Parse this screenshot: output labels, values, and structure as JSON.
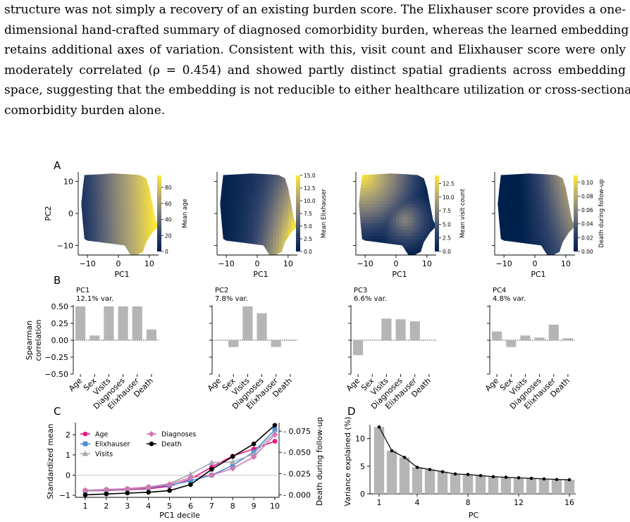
{
  "paragraph": {
    "lines": [
      "structure was not simply a recovery of an existing burden score. The Elixhauser score provides a one-",
      "dimensional hand-crafted summary of diagnosed comorbidity burden, whereas the learned embedding",
      "retains additional axes of variation. Consistent with this, visit count and Elixhauser score were only",
      "moderately correlated (ρ = 0.454) and showed partly distinct spatial gradients across embedding",
      "space, suggesting that the embedding is not reducible to either healthcare utilization or cross-sectional",
      "comorbidity burden alone."
    ]
  },
  "panelA": {
    "label": "A",
    "xlabel": "PC1",
    "ylabel": "PC2",
    "xticks": [
      "−10",
      "0",
      "10"
    ],
    "yticks": [
      "10",
      "0",
      "−10"
    ],
    "maps": [
      {
        "colorbar_label": "Mean age",
        "ticks": [
          "0",
          "20",
          "40",
          "60",
          "80"
        ],
        "max": 95,
        "tickvals": [
          0,
          20,
          40,
          60,
          80
        ],
        "cmap": "cividis"
      },
      {
        "colorbar_label": "Mean Elixhauser",
        "ticks": [
          "0.0",
          "2.5",
          "5.0",
          "7.5",
          "10.0",
          "12.5",
          "15.0"
        ],
        "max": 15,
        "tickvals": [
          0,
          2.5,
          5,
          7.5,
          10,
          12.5,
          15
        ],
        "cmap": "cividis"
      },
      {
        "colorbar_label": "Mean visit count",
        "ticks": [
          "0.0",
          "2.5",
          "5.0",
          "7.5",
          "10.0",
          "12.5"
        ],
        "max": 14,
        "tickvals": [
          0,
          2.5,
          5,
          7.5,
          10,
          12.5
        ],
        "cmap": "cividis"
      },
      {
        "colorbar_label": "Death during follow-up",
        "ticks": [
          "0.00",
          "0.02",
          "0.04",
          "0.06",
          "0.08",
          "0.10"
        ],
        "max": 0.11,
        "tickvals": [
          0,
          0.02,
          0.04,
          0.06,
          0.08,
          0.1
        ],
        "cmap": "cividis"
      }
    ]
  },
  "panelB": {
    "label": "B",
    "ylabel_line1": "Spearman",
    "ylabel_line2": "correlation",
    "yticks": [
      "0.50",
      "0.25",
      "0.00",
      "−0.25",
      "−0.50"
    ],
    "categories": [
      "Age",
      "Sex",
      "Visits",
      "Diagnoses",
      "Elixhauser",
      "Death"
    ],
    "bar_color": "#b5b5b5"
  },
  "panelC": {
    "label": "C",
    "xlabel": "PC1 decile",
    "ylabel": "Standardized mean",
    "ylabel_right": "Death during follow-up",
    "yticks_left": [
      "2",
      "1",
      "0",
      "−1"
    ],
    "yticks_right": [
      "0.075",
      "0.050",
      "0.025",
      "0.000"
    ],
    "xticks": [
      "1",
      "2",
      "3",
      "4",
      "5",
      "6",
      "7",
      "8",
      "9",
      "10"
    ]
  },
  "panelD": {
    "label": "D",
    "xlabel": "PC",
    "ylabel": "Variance explained (%)",
    "yticks": [
      "10",
      "5",
      "0"
    ],
    "xticks": [
      "1",
      "4",
      "8",
      "12",
      "16"
    ]
  },
  "chart_data": [
    {
      "type": "heatmap",
      "title": "",
      "xlabel": "PC1",
      "ylabel": "PC2",
      "xlim": [
        -13,
        13
      ],
      "ylim": [
        -13,
        13
      ],
      "colorbar_label": "Mean age",
      "colorbar_range": [
        0,
        95
      ],
      "description_gradient": "low values at left (PC1 negative), high at right"
    },
    {
      "type": "heatmap",
      "xlabel": "PC1",
      "ylabel": "PC2",
      "colorbar_label": "Mean Elixhauser",
      "colorbar_range": [
        0,
        15
      ]
    },
    {
      "type": "heatmap",
      "xlabel": "PC1",
      "ylabel": "PC2",
      "colorbar_label": "Mean visit count",
      "colorbar_range": [
        0,
        14
      ]
    },
    {
      "type": "heatmap",
      "xlabel": "PC1",
      "ylabel": "PC2",
      "colorbar_label": "Death during follow-up",
      "colorbar_range": [
        0,
        0.11
      ]
    },
    {
      "type": "bar",
      "title": "PC1",
      "subtitle": "12.1% var.",
      "ylabel": "Spearman correlation",
      "categories": [
        "Age",
        "Sex",
        "Visits",
        "Diagnoses",
        "Elixhauser",
        "Death"
      ],
      "values": [
        0.5,
        0.07,
        0.5,
        0.5,
        0.5,
        0.16
      ],
      "ylim": [
        -0.5,
        0.5
      ]
    },
    {
      "type": "bar",
      "title": "PC2",
      "subtitle": "7.8% var.",
      "categories": [
        "Age",
        "Sex",
        "Visits",
        "Diagnoses",
        "Elixhauser",
        "Death"
      ],
      "values": [
        0.0,
        -0.1,
        0.5,
        0.4,
        -0.1,
        0.01
      ],
      "ylim": [
        -0.5,
        0.5
      ]
    },
    {
      "type": "bar",
      "title": "PC3",
      "subtitle": "6.6% var.",
      "categories": [
        "Age",
        "Sex",
        "Visits",
        "Diagnoses",
        "Elixhauser",
        "Death"
      ],
      "values": [
        -0.22,
        0.0,
        0.32,
        0.31,
        0.28,
        0.0
      ],
      "ylim": [
        -0.5,
        0.5
      ]
    },
    {
      "type": "bar",
      "title": "PC4",
      "subtitle": "4.8% var.",
      "categories": [
        "Age",
        "Sex",
        "Visits",
        "Diagnoses",
        "Elixhauser",
        "Death"
      ],
      "values": [
        0.13,
        -0.1,
        0.07,
        0.04,
        0.23,
        0.03
      ],
      "ylim": [
        -0.5,
        0.5
      ]
    },
    {
      "type": "line",
      "xlabel": "PC1 decile",
      "ylabel": "Standardized mean",
      "ylabel_right": "Death during follow-up",
      "x": [
        1,
        2,
        3,
        4,
        5,
        6,
        7,
        8,
        9,
        10
      ],
      "ylim": [
        -1.1,
        2.6
      ],
      "ylim_right": [
        -0.003,
        0.085
      ],
      "legend": "top-left, two columns",
      "series": [
        {
          "name": "Age",
          "color": "#e8157f",
          "marker": "circle",
          "axis": "left",
          "values": [
            -0.78,
            -0.76,
            -0.72,
            -0.68,
            -0.55,
            -0.2,
            0.4,
            0.95,
            1.3,
            1.68
          ]
        },
        {
          "name": "Elixhauser",
          "color": "#4a8fd6",
          "marker": "square",
          "axis": "left",
          "values": [
            -0.78,
            -0.74,
            -0.7,
            -0.62,
            -0.5,
            -0.28,
            0.0,
            0.48,
            1.15,
            2.25
          ]
        },
        {
          "name": "Visits",
          "color": "#a9a9b4",
          "marker": "triangle",
          "axis": "left",
          "values": [
            -0.76,
            -0.72,
            -0.68,
            -0.6,
            -0.42,
            0.05,
            0.62,
            0.65,
            1.05,
            2.1
          ]
        },
        {
          "name": "Diagnoses",
          "color": "#d678b0",
          "marker": "diamond",
          "axis": "left",
          "values": [
            -0.75,
            -0.71,
            -0.67,
            -0.58,
            -0.45,
            -0.12,
            0.0,
            0.33,
            0.9,
            2.0
          ]
        },
        {
          "name": "Death",
          "color": "#000000",
          "marker": "circle",
          "axis": "right",
          "values": [
            0.0,
            0.001,
            0.002,
            0.003,
            0.005,
            0.012,
            0.03,
            0.045,
            0.06,
            0.082
          ]
        }
      ]
    },
    {
      "type": "bar",
      "xlabel": "PC",
      "ylabel": "Variance explained (%)",
      "x": [
        1,
        2,
        3,
        4,
        5,
        6,
        7,
        8,
        9,
        10,
        11,
        12,
        13,
        14,
        15,
        16
      ],
      "values": [
        12.1,
        7.8,
        6.6,
        4.8,
        4.4,
        4.0,
        3.6,
        3.5,
        3.3,
        3.1,
        3.0,
        2.9,
        2.8,
        2.7,
        2.6,
        2.55
      ],
      "ylim": [
        0,
        12.5
      ],
      "line_overlay": true
    }
  ]
}
